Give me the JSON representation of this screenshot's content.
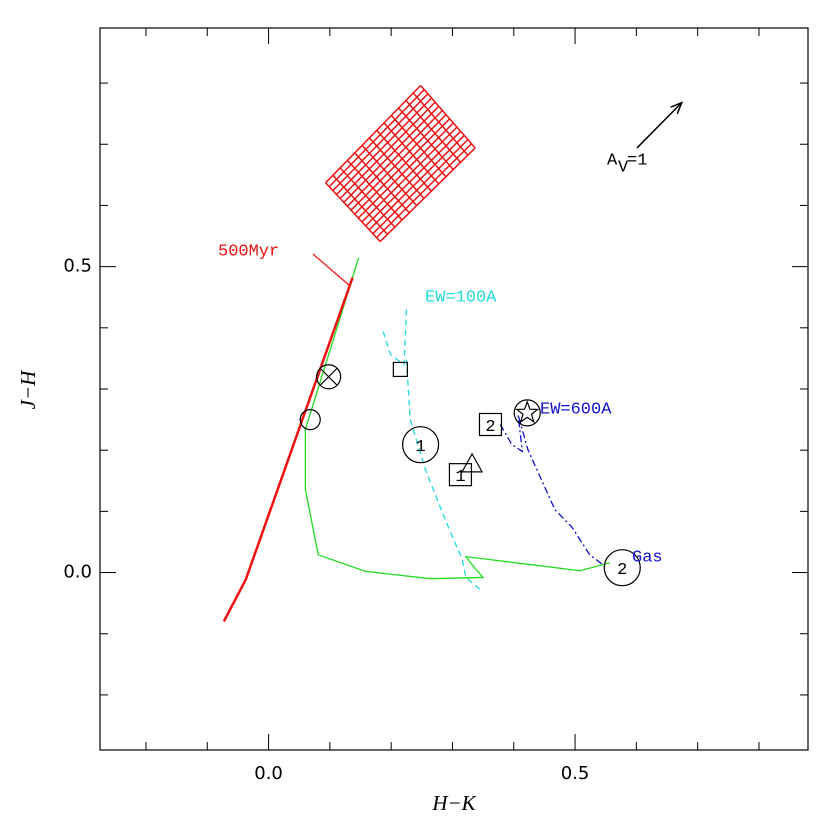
{
  "chart_data": {
    "type": "line",
    "x_label": "H−K",
    "y_label": "J−H",
    "xlim": [
      -0.275,
      0.88
    ],
    "ylim": [
      -0.29,
      0.89
    ],
    "xticks": [
      {
        "value": 0,
        "label": "0.0"
      },
      {
        "value": 0.5,
        "label": "0.5"
      }
    ],
    "yticks": [
      {
        "value": 0,
        "label": "0.0"
      },
      {
        "value": 0.5,
        "label": "0.5"
      }
    ],
    "xminorticks": [
      -0.2,
      -0.1,
      0.1,
      0.2,
      0.3,
      0.4,
      0.6,
      0.7,
      0.8
    ],
    "yminorticks": [
      -0.2,
      -0.1,
      0.1,
      0.2,
      0.3,
      0.4,
      0.6,
      0.7,
      0.8
    ],
    "series": [
      {
        "color": "#22dd22",
        "dash": "none",
        "width": 1.3,
        "x": [
          0.147,
          0.117,
          0.06,
          0.06,
          0.081,
          0.158,
          0.264,
          0.35,
          0.336,
          0.322,
          0.508,
          0.557
        ],
        "y": [
          0.515,
          0.417,
          0.234,
          0.136,
          0.029,
          0.002,
          -0.01,
          -0.008,
          0.008,
          0.026,
          0.003,
          0.016
        ]
      },
      {
        "color": "#ee1111",
        "dash": "none",
        "width": 2.5,
        "x": [
          -0.073,
          -0.037,
          0.137
        ],
        "y": [
          -0.08,
          -0.011,
          0.482
        ]
      },
      {
        "color": "#22dddd",
        "dash": "6,4",
        "width": 1.3,
        "x": [
          0.187,
          0.199,
          0.221,
          0.225,
          null,
          0.225,
          0.231,
          0.256,
          0.288,
          0.316,
          0.322,
          0.349
        ],
        "y": [
          0.394,
          0.356,
          0.34,
          0.43,
          null,
          0.348,
          0.25,
          0.168,
          0.087,
          0.021,
          -0.008,
          -0.031
        ]
      },
      {
        "color": "#1111cc",
        "dash": "7,3,2,3",
        "width": 1.3,
        "x": [
          0.378,
          0.397,
          0.414,
          0.407,
          0.423,
          0.467,
          0.495,
          0.524,
          0.549
        ],
        "y": [
          0.242,
          0.209,
          0.198,
          0.258,
          0.201,
          0.103,
          0.074,
          0.029,
          0.01
        ]
      }
    ],
    "markers": [
      {
        "shape": "circle",
        "x": 0.068,
        "y": 0.25
      },
      {
        "shape": "crossed-circle",
        "x": 0.098,
        "y": 0.32
      },
      {
        "shape": "square",
        "x": 0.215,
        "y": 0.332
      },
      {
        "shape": "circle",
        "x": 0.248,
        "y": 0.209,
        "label": "1"
      },
      {
        "shape": "square",
        "x": 0.362,
        "y": 0.242,
        "label": "2"
      },
      {
        "shape": "star-circle",
        "x": 0.422,
        "y": 0.261
      },
      {
        "shape": "square",
        "x": 0.313,
        "y": 0.16,
        "label": "1"
      },
      {
        "shape": "triangle",
        "x": 0.332,
        "y": 0.176
      },
      {
        "shape": "circle",
        "x": 0.577,
        "y": 0.008,
        "label": "2"
      }
    ],
    "grid_region": {
      "color": "#ee1111",
      "divisions": [
        13,
        15
      ],
      "x": [
        0.093,
        0.248,
        0.337,
        0.182
      ],
      "y": [
        0.637,
        0.796,
        0.694,
        0.541
      ]
    },
    "arrow": {
      "x": [
        0.601,
        0.674
      ],
      "y": [
        0.694,
        0.768
      ],
      "label": "A",
      "label_sub": "V",
      "label_tail": "=1"
    },
    "annotations": [
      {
        "text": "500Myr",
        "color": "#ee1111"
      },
      {
        "text": "EW=100A",
        "color": "#22dddd"
      },
      {
        "text": "EW=600A",
        "color": "#1111cc"
      },
      {
        "text": "Gas",
        "color": "#1111cc"
      }
    ]
  }
}
